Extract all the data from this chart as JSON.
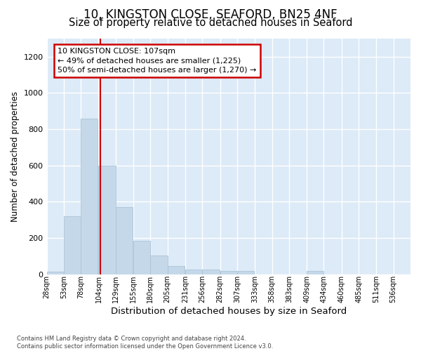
{
  "title1": "10, KINGSTON CLOSE, SEAFORD, BN25 4NF",
  "title2": "Size of property relative to detached houses in Seaford",
  "xlabel": "Distribution of detached houses by size in Seaford",
  "ylabel": "Number of detached properties",
  "bar_color": "#c5d8ea",
  "bar_edge_color": "#aac4d8",
  "bg_color": "#ddeaf7",
  "red_line_color": "#cc0000",
  "annotation_text": "10 KINGSTON CLOSE: 107sqm\n← 49% of detached houses are smaller (1,225)\n50% of semi-detached houses are larger (1,270) →",
  "red_line_x": 107,
  "bins_left": [
    28,
    53,
    78,
    104,
    129,
    155,
    180,
    205,
    231,
    256,
    282,
    307,
    333,
    358,
    383,
    409,
    434,
    460,
    485,
    511
  ],
  "bin_width": 25,
  "bar_heights": [
    15,
    320,
    860,
    600,
    370,
    185,
    105,
    47,
    25,
    25,
    20,
    20,
    0,
    0,
    0,
    20,
    0,
    0,
    0,
    0
  ],
  "tick_labels": [
    "28sqm",
    "53sqm",
    "78sqm",
    "104sqm",
    "129sqm",
    "155sqm",
    "180sqm",
    "205sqm",
    "231sqm",
    "256sqm",
    "282sqm",
    "307sqm",
    "333sqm",
    "358sqm",
    "383sqm",
    "409sqm",
    "434sqm",
    "460sqm",
    "485sqm",
    "511sqm",
    "536sqm"
  ],
  "ylim": [
    0,
    1300
  ],
  "yticks": [
    0,
    200,
    400,
    600,
    800,
    1000,
    1200
  ],
  "footer": "Contains HM Land Registry data © Crown copyright and database right 2024.\nContains public sector information licensed under the Open Government Licence v3.0.",
  "title1_fontsize": 12,
  "title2_fontsize": 10.5,
  "xlabel_fontsize": 9.5,
  "ylabel_fontsize": 8.5,
  "annot_fontsize": 8,
  "tick_fontsize": 7
}
